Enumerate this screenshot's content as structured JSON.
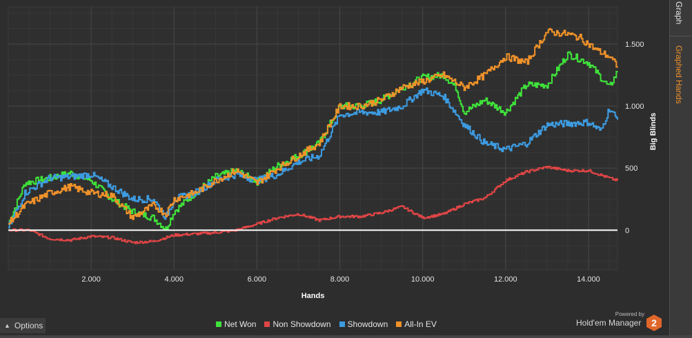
{
  "chart_data": {
    "type": "line",
    "xlabel": "Hands",
    "ylabel": "Big Blinds",
    "xlim": [
      0,
      14700
    ],
    "ylim": [
      -320,
      1800
    ],
    "x_ticks": [
      2000,
      4000,
      6000,
      8000,
      10000,
      12000,
      14000
    ],
    "x_tick_labels": [
      "2.000",
      "4.000",
      "6.000",
      "8.000",
      "10.000",
      "12.000",
      "14.000"
    ],
    "y_ticks": [
      0,
      500,
      1000,
      1500
    ],
    "y_tick_labels": [
      "0",
      "500",
      "1.000",
      "1.500"
    ],
    "grid": true,
    "legend_position": "bottom",
    "series": [
      {
        "name": "Net Won",
        "color": "#3fe23a",
        "x": [
          0,
          400,
          1000,
          1500,
          2000,
          2500,
          3000,
          3500,
          3800,
          4000,
          4500,
          5000,
          5500,
          6000,
          6500,
          7000,
          7500,
          8000,
          8500,
          9000,
          9500,
          10000,
          10500,
          10800,
          11000,
          11500,
          12000,
          12500,
          13000,
          13500,
          14000,
          14500,
          14700
        ],
        "values": [
          50,
          380,
          420,
          460,
          400,
          250,
          150,
          100,
          10,
          150,
          300,
          430,
          480,
          390,
          520,
          600,
          700,
          1000,
          1000,
          1050,
          1150,
          1230,
          1250,
          1150,
          950,
          1050,
          950,
          1170,
          1170,
          1420,
          1350,
          1150,
          1280
        ]
      },
      {
        "name": "Non Showdown",
        "color": "#e04545",
        "x": [
          0,
          500,
          1000,
          1500,
          2000,
          2500,
          3000,
          3500,
          4000,
          4500,
          5000,
          5500,
          6000,
          6500,
          7000,
          7500,
          8000,
          8500,
          9000,
          9500,
          10000,
          10500,
          11000,
          11500,
          12000,
          12500,
          13000,
          13500,
          14000,
          14500,
          14700
        ],
        "values": [
          0,
          0,
          -70,
          -80,
          -50,
          -60,
          -100,
          -90,
          -40,
          -30,
          -20,
          0,
          50,
          100,
          130,
          80,
          110,
          110,
          140,
          190,
          100,
          130,
          210,
          260,
          400,
          470,
          510,
          480,
          480,
          420,
          400
        ]
      },
      {
        "name": "Showdown",
        "color": "#3d9be0",
        "x": [
          0,
          400,
          1000,
          1500,
          2000,
          2500,
          3000,
          3500,
          3800,
          4000,
          4500,
          5000,
          5500,
          6000,
          6500,
          7000,
          7500,
          8000,
          8500,
          9000,
          9500,
          10000,
          10500,
          11000,
          11500,
          12000,
          12500,
          13000,
          13500,
          14000,
          14300,
          14500,
          14700
        ],
        "values": [
          20,
          300,
          420,
          430,
          450,
          350,
          250,
          250,
          100,
          250,
          300,
          400,
          450,
          400,
          450,
          550,
          600,
          930,
          950,
          950,
          1000,
          1130,
          1080,
          850,
          700,
          650,
          700,
          850,
          860,
          870,
          800,
          980,
          890
        ]
      },
      {
        "name": "All-In EV",
        "color": "#f0922a",
        "x": [
          0,
          400,
          1000,
          1500,
          2000,
          2500,
          3000,
          3500,
          3800,
          4000,
          4500,
          5000,
          5500,
          6000,
          6500,
          7000,
          7500,
          8000,
          8500,
          9000,
          9500,
          10000,
          10500,
          11000,
          11500,
          12000,
          12500,
          13000,
          13500,
          13800,
          14200,
          14500,
          14700
        ],
        "values": [
          50,
          200,
          300,
          350,
          300,
          280,
          100,
          200,
          130,
          250,
          300,
          400,
          480,
          380,
          500,
          600,
          700,
          1000,
          1000,
          1050,
          1150,
          1200,
          1250,
          1150,
          1250,
          1400,
          1350,
          1600,
          1580,
          1550,
          1450,
          1400,
          1320
        ]
      }
    ]
  },
  "tabs": {
    "graph": "Graph",
    "graphed_hands": "Graphed Hands"
  },
  "options_label": "Options",
  "brand": {
    "powered": "Powered by",
    "name": "Hold'em Manager",
    "logo_text": "2"
  },
  "legend": [
    {
      "label": "Net Won",
      "color": "#3fe23a"
    },
    {
      "label": "Non Showdown",
      "color": "#e04545"
    },
    {
      "label": "Showdown",
      "color": "#3d9be0"
    },
    {
      "label": "All-In EV",
      "color": "#f0922a"
    }
  ]
}
